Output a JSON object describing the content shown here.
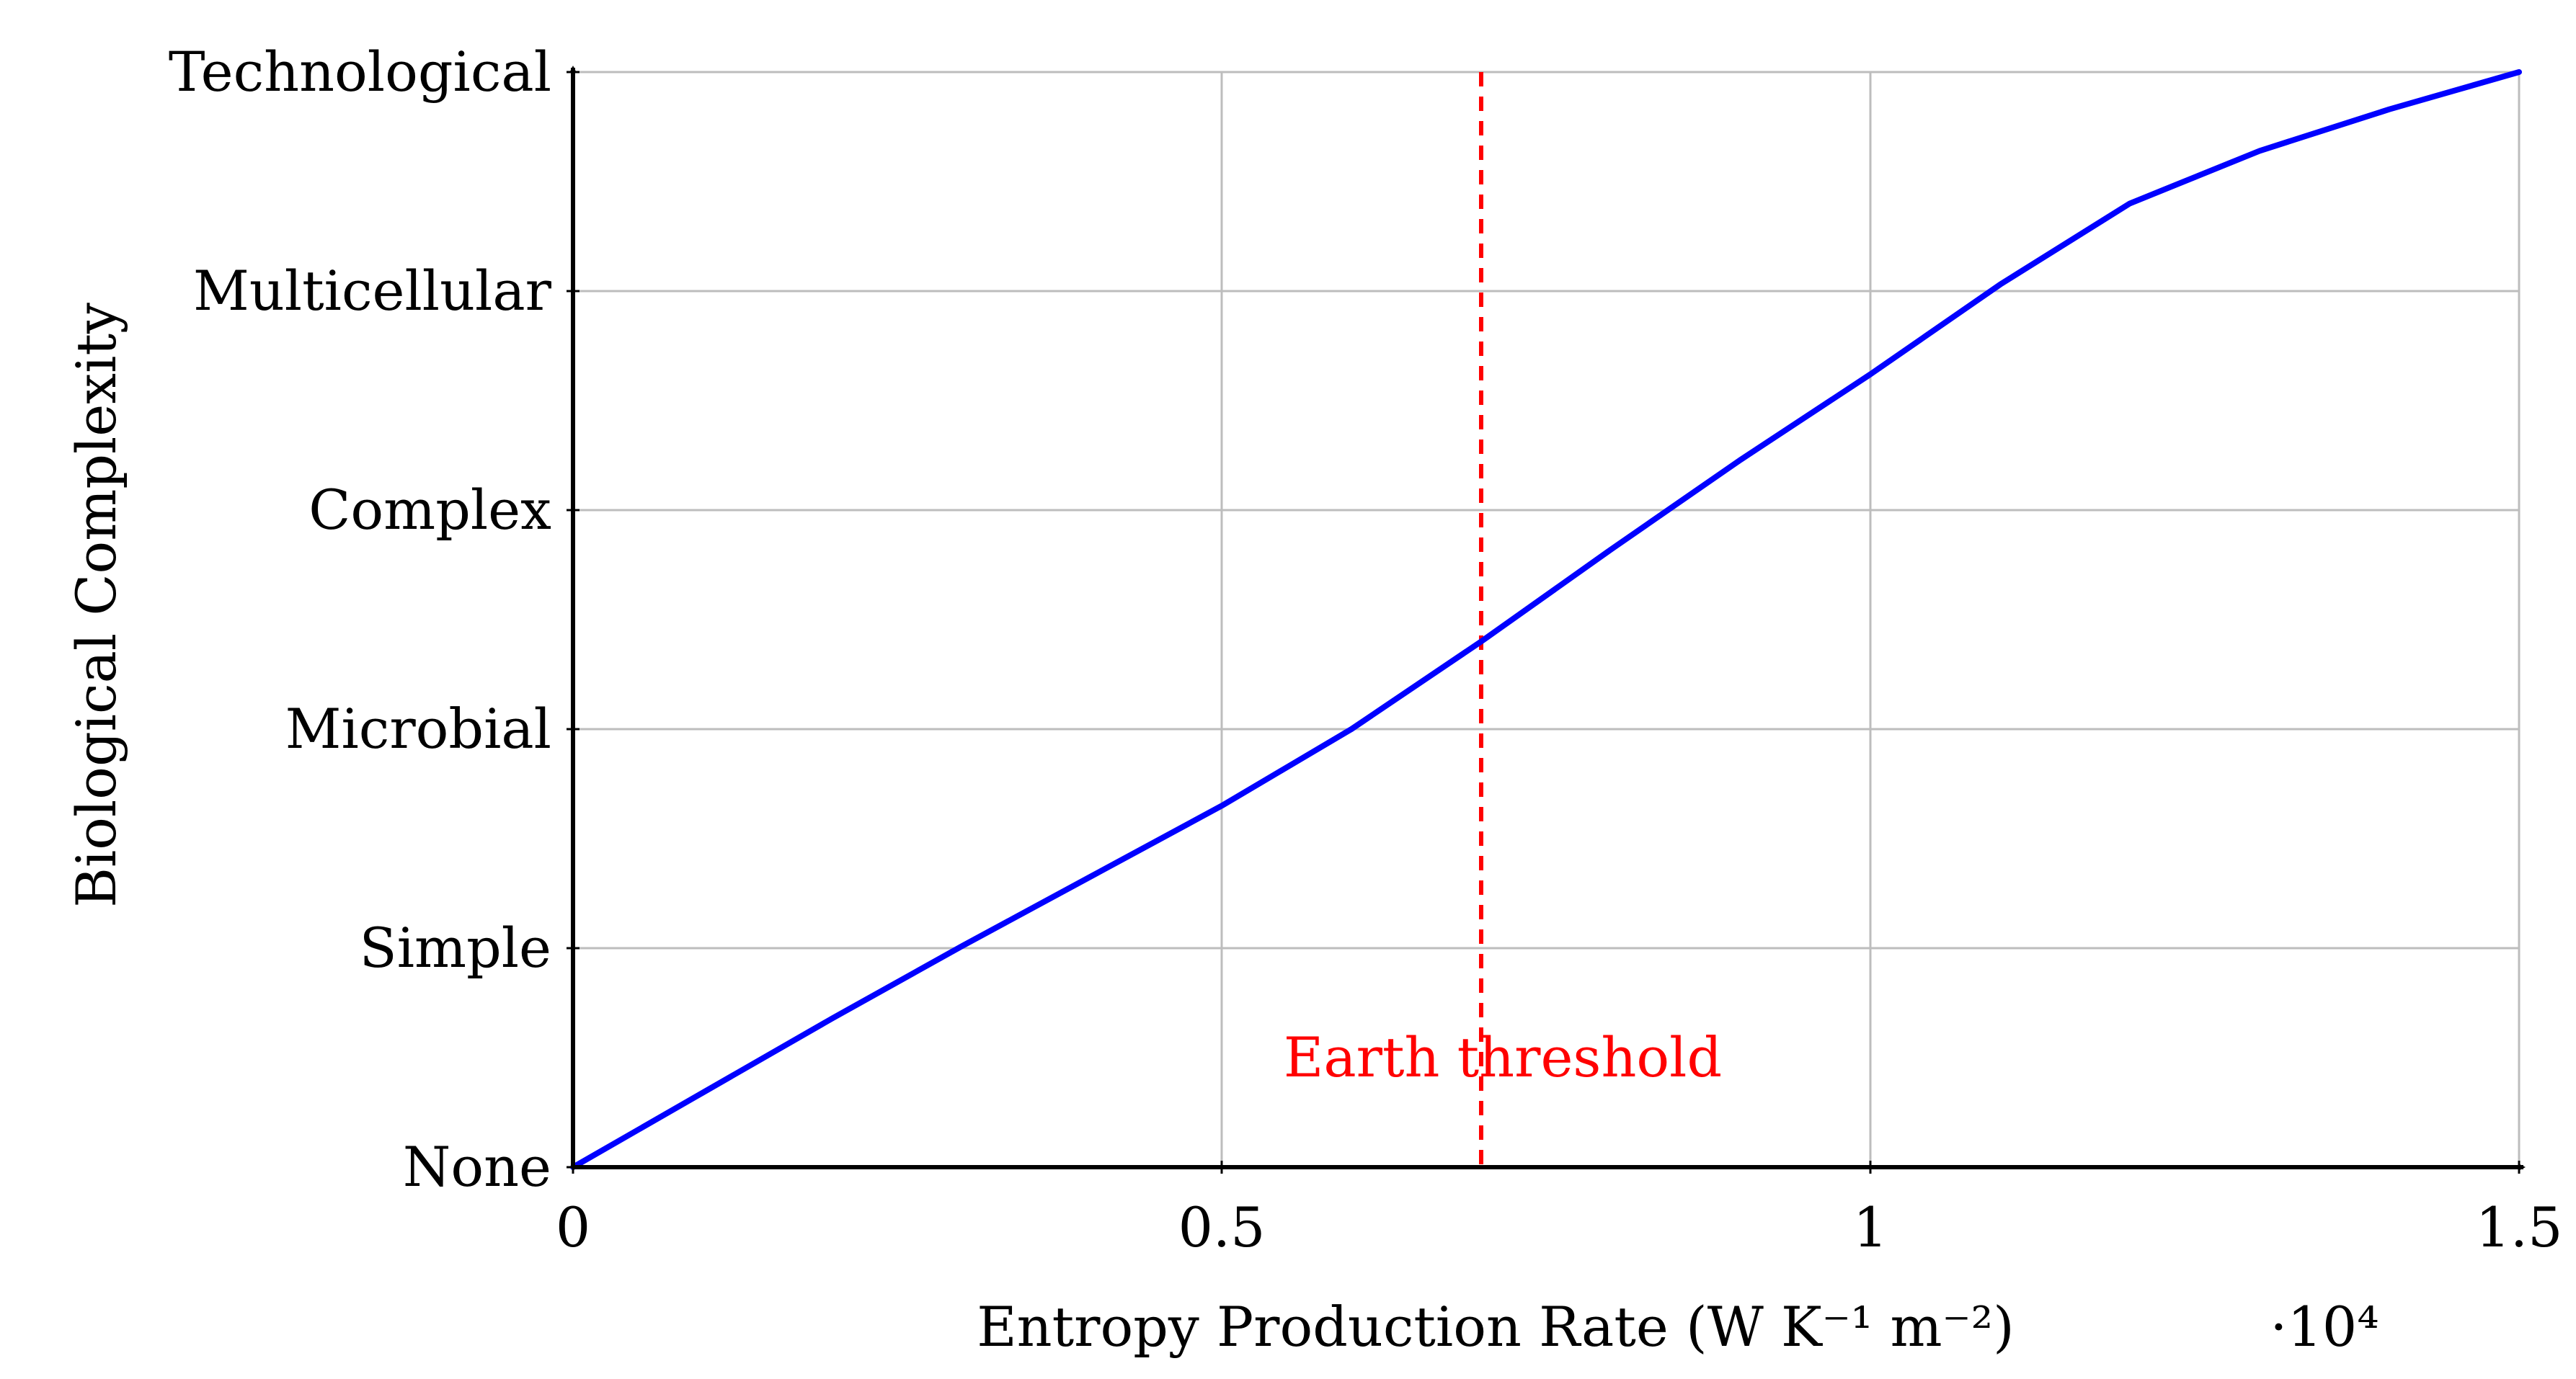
{
  "chart_data": {
    "type": "line",
    "xlabel": "Entropy Production Rate (W K⁻¹ m⁻²)",
    "ylabel": "Biological Complexity",
    "x_scale_label": "·10⁴",
    "xlim": [
      0,
      15000
    ],
    "ylim": [
      0,
      5
    ],
    "x_ticks": [
      0,
      5000,
      10000,
      15000
    ],
    "x_tick_labels": [
      "0",
      "0.5",
      "1",
      "1.5"
    ],
    "y_ticks": [
      0,
      1,
      2,
      3,
      4,
      5
    ],
    "y_tick_labels": [
      "None",
      "Simple",
      "Microbial",
      "Complex",
      "Multicellular",
      "Technological"
    ],
    "grid": true,
    "series": [
      {
        "color": "#0000ff",
        "x": [
          0,
          1000,
          2000,
          3000,
          4000,
          5000,
          6000,
          7000,
          8000,
          9000,
          10000,
          11000,
          12000,
          13000,
          14000,
          15000
        ],
        "y": [
          0,
          0.34,
          0.68,
          1.01,
          1.33,
          1.65,
          2.0,
          2.4,
          2.82,
          3.23,
          3.62,
          4.03,
          4.4,
          4.64,
          4.83,
          5.0
        ]
      }
    ],
    "annotations": [
      {
        "type": "vline",
        "x": 7000,
        "style": "dashed",
        "color": "#ff0000",
        "label": "Earth threshold",
        "label_y": 0.5
      }
    ]
  }
}
